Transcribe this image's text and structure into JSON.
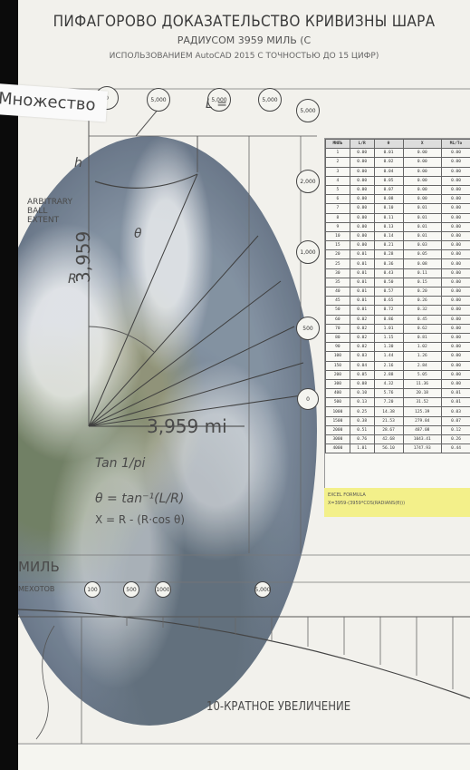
{
  "title": {
    "line1": "ПИФАГОРОВО ДОКАЗАТЕЛЬСТВО КРИВИЗНЫ ШАРА",
    "line2": "РАДИУСОМ 3959 МИЛЬ (С",
    "line3": "ИСПОЛЬЗОВАНИЕМ AutoCAD 2015 С ТОЧНОСТЬЮ ДО 15 ЦИФР)"
  },
  "overlay_label": "Множество",
  "bubbles": [
    "0",
    "5,000",
    "5,000",
    "5,000",
    "5,000",
    "2,000",
    "1,000",
    "500",
    "0",
    "100",
    "500",
    "1000",
    "5,000"
  ],
  "labels": {
    "l_eq": "L =",
    "radius_vertical": "3,959",
    "radius_horizontal": "3,959 mi",
    "r": "R",
    "h": "h",
    "theta": "θ",
    "circle_note": "ARBITRARY\nBALL\nEXTENT",
    "formula1": "Tan 1/pi",
    "formula2": "θ = tan⁻¹(L/R)",
    "formula3": "X = R - (R·cos θ)",
    "miles_label": "МИЛЬ",
    "miles_sub": "МЕХОТОВ",
    "bottom_caption": "10-КРАТНОЕ УВЕЛИЧЕНИЕ"
  },
  "table": {
    "headers": [
      "МИЛЬ",
      "L/R",
      "θ",
      "X",
      "Mi/To"
    ],
    "rows": [
      [
        "1",
        "0.00",
        "0.01",
        "0.00",
        "0.00"
      ],
      [
        "2",
        "0.00",
        "0.02",
        "0.00",
        "0.00"
      ],
      [
        "3",
        "0.00",
        "0.04",
        "0.00",
        "0.00"
      ],
      [
        "4",
        "0.00",
        "0.05",
        "0.00",
        "0.00"
      ],
      [
        "5",
        "0.00",
        "0.07",
        "0.00",
        "0.00"
      ],
      [
        "6",
        "0.00",
        "0.08",
        "0.00",
        "0.00"
      ],
      [
        "7",
        "0.00",
        "0.10",
        "0.01",
        "0.00"
      ],
      [
        "8",
        "0.00",
        "0.11",
        "0.01",
        "0.00"
      ],
      [
        "9",
        "0.00",
        "0.13",
        "0.01",
        "0.00"
      ],
      [
        "10",
        "0.00",
        "0.14",
        "0.01",
        "0.00"
      ],
      [
        "15",
        "0.00",
        "0.21",
        "0.03",
        "0.00"
      ],
      [
        "20",
        "0.01",
        "0.28",
        "0.05",
        "0.00"
      ],
      [
        "25",
        "0.01",
        "0.36",
        "0.08",
        "0.00"
      ],
      [
        "30",
        "0.01",
        "0.43",
        "0.11",
        "0.00"
      ],
      [
        "35",
        "0.01",
        "0.50",
        "0.15",
        "0.00"
      ],
      [
        "40",
        "0.01",
        "0.57",
        "0.20",
        "0.00"
      ],
      [
        "45",
        "0.01",
        "0.65",
        "0.26",
        "0.00"
      ],
      [
        "50",
        "0.01",
        "0.72",
        "0.32",
        "0.00"
      ],
      [
        "60",
        "0.02",
        "0.86",
        "0.45",
        "0.00"
      ],
      [
        "70",
        "0.02",
        "1.01",
        "0.62",
        "0.00"
      ],
      [
        "80",
        "0.02",
        "1.15",
        "0.81",
        "0.00"
      ],
      [
        "90",
        "0.02",
        "1.30",
        "1.02",
        "0.00"
      ],
      [
        "100",
        "0.03",
        "1.44",
        "1.26",
        "0.00"
      ],
      [
        "150",
        "0.04",
        "2.16",
        "2.84",
        "0.00"
      ],
      [
        "200",
        "0.05",
        "2.88",
        "5.05",
        "0.00"
      ],
      [
        "300",
        "0.08",
        "4.32",
        "11.36",
        "0.00"
      ],
      [
        "400",
        "0.10",
        "5.76",
        "20.18",
        "0.01"
      ],
      [
        "500",
        "0.13",
        "7.20",
        "31.52",
        "0.01"
      ],
      [
        "1000",
        "0.25",
        "14.38",
        "125.39",
        "0.03"
      ],
      [
        "1500",
        "0.38",
        "21.53",
        "279.84",
        "0.07"
      ],
      [
        "2000",
        "0.51",
        "28.67",
        "487.08",
        "0.12"
      ],
      [
        "3000",
        "0.76",
        "42.68",
        "1043.41",
        "0.26"
      ],
      [
        "4000",
        "1.01",
        "56.10",
        "1747.93",
        "0.44"
      ]
    ]
  },
  "formula_box": {
    "line1": "EXCEL FORMULA",
    "line2": "X=3959-(3959*COS(RADIANS(θ)))"
  },
  "colors": {
    "line": "#4a4a4a",
    "highlight": "#f3f08a"
  }
}
